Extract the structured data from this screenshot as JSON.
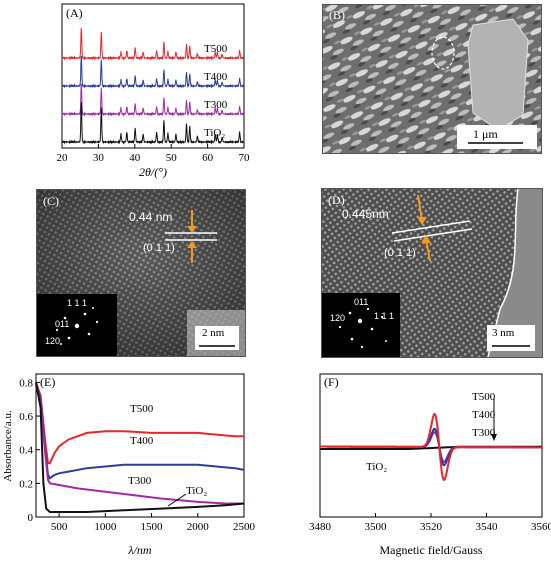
{
  "panels": {
    "A": {
      "label": "(A)",
      "xlabel": "2θ/(°)",
      "xticks": [
        "20",
        "30",
        "40",
        "50",
        "60",
        "70"
      ],
      "series": [
        "T500",
        "T400",
        "T300",
        "TiO₂"
      ],
      "colors": [
        "#e8262b",
        "#2b3d9a",
        "#a02aa8",
        "#111111"
      ]
    },
    "B": {
      "label": "(B)",
      "scale_bar": "1 μm"
    },
    "C": {
      "label": "(C)",
      "d_spacing": "0.44 nm",
      "plane": "(0 1 1)",
      "saed": [
        "1 1 1",
        "011",
        "120"
      ],
      "scale_bar": "2 nm"
    },
    "D": {
      "label": "(D)",
      "d_spacing": "0.445nm",
      "plane": "(0 1 1)",
      "saed": [
        "011",
        "1 1 1",
        "120"
      ],
      "scale_bar": "3 nm"
    },
    "E": {
      "label": "(E)",
      "xlabel": "λ/nm",
      "ylabel": "Absorbance/a.u.",
      "xticks": [
        "500",
        "1000",
        "1500",
        "2000",
        "2500"
      ],
      "yticks": [
        "0",
        "0.2",
        "0.4",
        "0.6",
        "0.8"
      ],
      "series": [
        "T500",
        "T400",
        "T300",
        "TiO₂"
      ]
    },
    "F": {
      "label": "(F)",
      "xlabel": "Magnetic field/Gauss",
      "xticks": [
        "3480",
        "3500",
        "3520",
        "3540",
        "3560"
      ],
      "series": [
        "T500",
        "T400",
        "T300",
        "TiO₂"
      ]
    }
  },
  "chart_data": [
    {
      "type": "line",
      "panel": "A",
      "xlabel": "2θ/(°)",
      "xlim": [
        20,
        70
      ],
      "peaks": [
        25.3,
        30.8,
        36.2,
        37.8,
        40.1,
        42.3,
        46.0,
        48.0,
        49.1,
        51.3,
        54.2,
        55.1,
        57.2,
        62.1,
        62.7,
        64.0,
        68.8
      ],
      "series": [
        {
          "name": "T500",
          "offset": 3
        },
        {
          "name": "T400",
          "offset": 2
        },
        {
          "name": "T300",
          "offset": 1
        },
        {
          "name": "TiO₂",
          "offset": 0
        }
      ]
    },
    {
      "type": "line",
      "panel": "E",
      "xlabel": "λ/nm",
      "ylabel": "Absorbance/a.u.",
      "xlim": [
        250,
        2500
      ],
      "ylim": [
        0,
        0.85
      ],
      "series": [
        {
          "name": "T500",
          "x": [
            250,
            300,
            350,
            380,
            400,
            450,
            500,
            600,
            800,
            1000,
            1200,
            1500,
            1800,
            2000,
            2200,
            2400,
            2500
          ],
          "y": [
            0.8,
            0.72,
            0.45,
            0.32,
            0.32,
            0.38,
            0.42,
            0.46,
            0.5,
            0.51,
            0.51,
            0.5,
            0.5,
            0.5,
            0.49,
            0.48,
            0.48
          ]
        },
        {
          "name": "T400",
          "x": [
            250,
            300,
            350,
            380,
            400,
            450,
            500,
            600,
            800,
            1000,
            1200,
            1500,
            1800,
            2000,
            2200,
            2400,
            2500
          ],
          "y": [
            0.79,
            0.7,
            0.4,
            0.25,
            0.23,
            0.25,
            0.26,
            0.27,
            0.29,
            0.3,
            0.31,
            0.31,
            0.31,
            0.31,
            0.3,
            0.29,
            0.28
          ]
        },
        {
          "name": "T300",
          "x": [
            250,
            300,
            350,
            380,
            400,
            500,
            700,
            1000,
            1300,
            1600,
            2000,
            2300,
            2500
          ],
          "y": [
            0.78,
            0.68,
            0.38,
            0.22,
            0.2,
            0.19,
            0.17,
            0.15,
            0.13,
            0.11,
            0.09,
            0.08,
            0.08
          ]
        },
        {
          "name": "TiO₂",
          "x": [
            250,
            300,
            330,
            360,
            400,
            500,
            800,
            1200,
            1600,
            2000,
            2300,
            2500
          ],
          "y": [
            0.8,
            0.65,
            0.2,
            0.05,
            0.03,
            0.03,
            0.03,
            0.04,
            0.05,
            0.06,
            0.07,
            0.08
          ]
        }
      ]
    },
    {
      "type": "line",
      "panel": "F",
      "xlabel": "Magnetic field/Gauss",
      "xlim": [
        3480,
        3560
      ],
      "series": [
        {
          "name": "T500",
          "amplitude": 1.0
        },
        {
          "name": "T400",
          "amplitude": 0.55
        },
        {
          "name": "T300",
          "amplitude": 0.45
        },
        {
          "name": "TiO₂",
          "amplitude": 0.0
        }
      ]
    }
  ]
}
